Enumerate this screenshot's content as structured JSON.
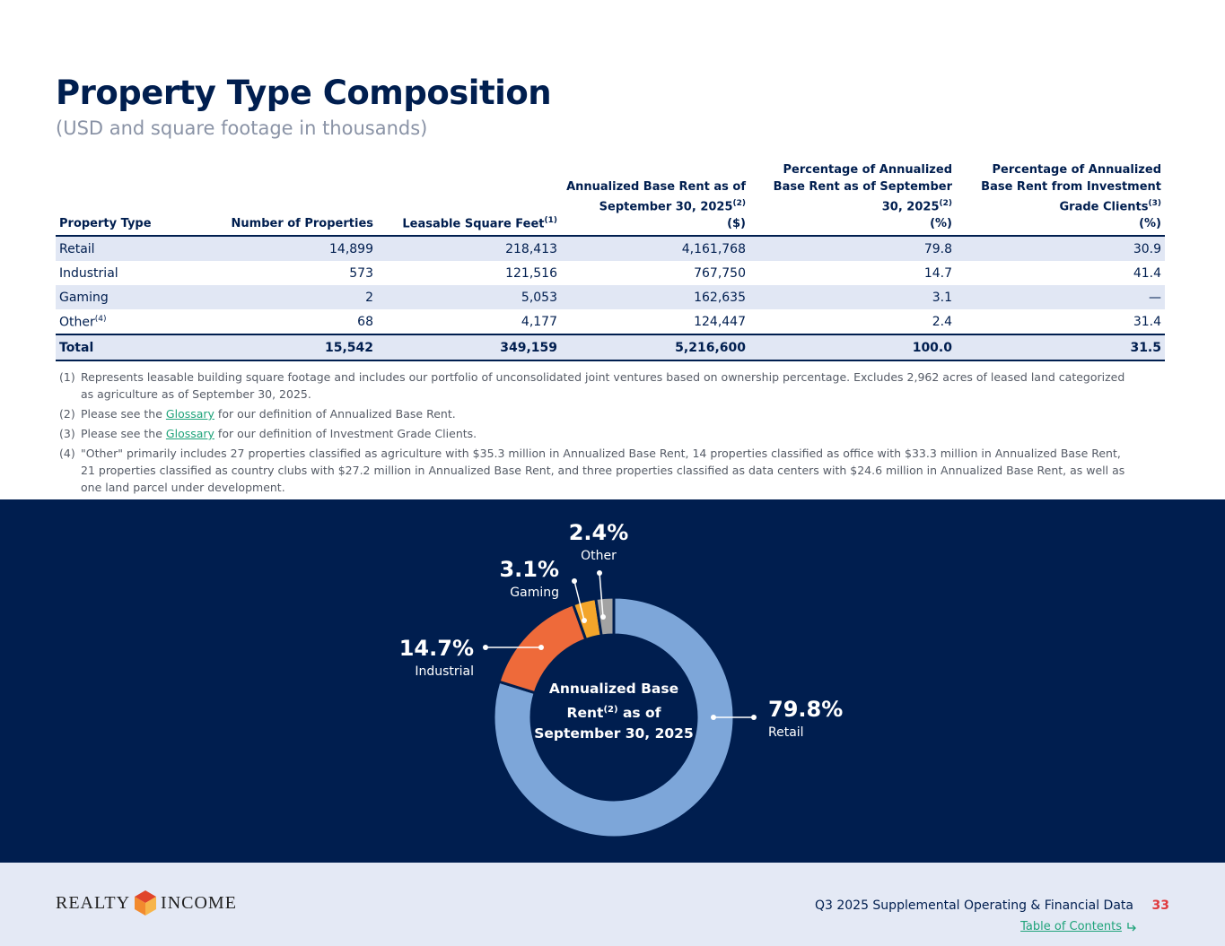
{
  "header": {
    "title": "Property Type Composition",
    "subtitle": "(USD and square footage in thousands)"
  },
  "table": {
    "columns": [
      {
        "label": "Property Type"
      },
      {
        "label": "Number of Properties"
      },
      {
        "label": "Leasable Square Feet",
        "sup": "(1)"
      },
      {
        "label": "Annualized Base Rent as of September 30, 2025",
        "sup": "(2)",
        "unit": "($)"
      },
      {
        "label": "Percentage of Annualized Base Rent as of September 30, 2025",
        "sup": "(2)",
        "unit": "(%)"
      },
      {
        "label": "Percentage of Annualized Base Rent from Investment Grade Clients",
        "sup": "(3)",
        "unit": "(%)"
      }
    ],
    "rows": [
      [
        "Retail",
        "14,899",
        "218,413",
        "4,161,768",
        "79.8",
        "30.9"
      ],
      [
        "Industrial",
        "573",
        "121,516",
        "767,750",
        "14.7",
        "41.4"
      ],
      [
        "Gaming",
        "2",
        "5,053",
        "162,635",
        "3.1",
        "—"
      ],
      [
        {
          "text": "Other",
          "sup": "(4)"
        },
        "68",
        "4,177",
        "124,447",
        "2.4",
        "31.4"
      ]
    ],
    "total": [
      "Total",
      "15,542",
      "349,159",
      "5,216,600",
      "100.0",
      "31.5"
    ]
  },
  "footnotes": [
    {
      "marker": "(1)",
      "before": "Represents leasable building square footage and includes our portfolio of unconsolidated joint ventures based on ownership percentage. Excludes 2,962 acres of leased land categorized as agriculture as of September 30, 2025."
    },
    {
      "marker": "(2)",
      "before": "Please see the",
      "link": "Glossary",
      "after": "for our definition of Annualized Base Rent."
    },
    {
      "marker": "(3)",
      "before": "Please see the",
      "link": "Glossary",
      "after": "for our definition of Investment Grade Clients."
    },
    {
      "marker": "(4)",
      "before": "\"Other\" primarily includes 27 properties classified as agriculture with $35.3 million in Annualized Base Rent, 14 properties classified as office with $33.3 million in Annualized Base Rent, 21 properties classified as country clubs with $27.2 million in Annualized Base Rent, and three properties classified as data centers with $24.6 million in Annualized Base Rent, as well as one land parcel under development."
    }
  ],
  "chart_data": {
    "type": "donut",
    "categories": [
      "Retail",
      "Industrial",
      "Gaming",
      "Other"
    ],
    "values": [
      79.8,
      14.7,
      3.1,
      2.4
    ],
    "value_labels": [
      "79.8%",
      "14.7%",
      "3.1%",
      "2.4%"
    ],
    "colors": [
      "#7da6d9",
      "#ee6a3a",
      "#f3a52a",
      "#a3a3a3"
    ],
    "center_label": {
      "line1": "Annualized Base",
      "line2": "Rent",
      "sup": "(2)",
      "line2b": "as of",
      "line3": "September 30, 2025"
    }
  },
  "footer": {
    "logo": [
      "REALTY",
      "INCOME"
    ],
    "report": "Q3 2025 Supplemental Operating & Financial Data",
    "page": "33",
    "toc": "Table of Contents"
  }
}
